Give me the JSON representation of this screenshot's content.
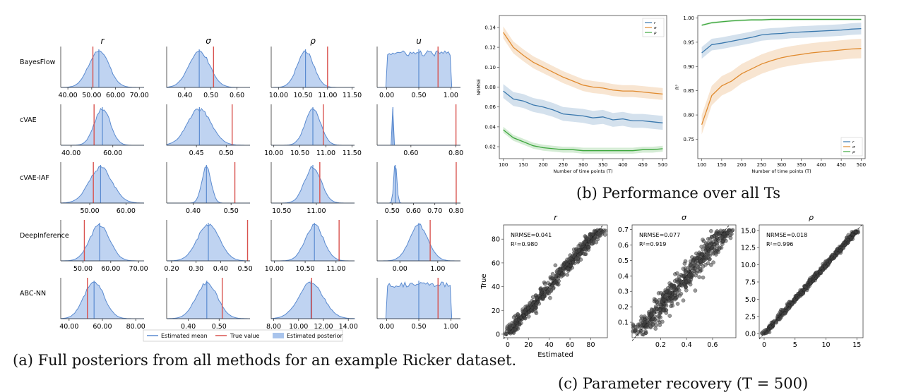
{
  "captions": {
    "a": "(a) Full posteriors from all methods for an example Ricker dataset.",
    "b": "(b) Performance over all Ts",
    "c": "(c) Parameter recovery (T = 500)"
  },
  "colors": {
    "estimated_mean": "#5b8bd0",
    "true_value": "#d9534f",
    "posterior_fill": "#a9c4ec",
    "r_line": "#3a78ad",
    "sigma_line": "#e08a2e",
    "rho_line": "#3fa83f",
    "scatter": "#444444"
  },
  "chart_data": [
    {
      "type": "area",
      "title": "(a) Full posteriors from all methods for an example Ricker dataset.",
      "columns": [
        "r",
        "σ",
        "ρ",
        "u"
      ],
      "rows": [
        "BayesFlow",
        "cVAE",
        "cVAE-IAF",
        "DeepInference",
        "ABC-NN"
      ],
      "legend": [
        "Estimated mean",
        "True value",
        "Estimated posterior"
      ],
      "legend_position": "bottom",
      "panels": [
        [
          {
            "ticks": [
              "40.00",
              "50.00",
              "60.00",
              "70.00"
            ],
            "xlim": [
              37,
              72
            ],
            "mean": 53,
            "sd": 4.2,
            "mean_line": 53,
            "true": 50.5
          },
          {
            "ticks": [
              "0.40",
              "0.50",
              "0.60"
            ],
            "xlim": [
              0.33,
              0.65
            ],
            "mean": 0.455,
            "sd": 0.04,
            "mean_line": 0.455,
            "true": 0.51
          },
          {
            "ticks": [
              "10.00",
              "10.50",
              "11.00",
              "11.50"
            ],
            "xlim": [
              9.85,
              11.55
            ],
            "mean": 10.55,
            "sd": 0.17,
            "mean_line": 10.55,
            "true": 11.0
          },
          {
            "ticks": [
              "0.00",
              "0.50",
              "1.00"
            ],
            "xlim": [
              -0.15,
              1.15
            ],
            "uniform": [
              0.0,
              1.0
            ],
            "mean_line": 0.5,
            "true": 0.8
          }
        ],
        [
          {
            "ticks": [
              "40.00",
              "60.00"
            ],
            "xlim": [
              35,
              75
            ],
            "mean": 55,
            "sd": 3.8,
            "mean_line": 55,
            "true": 51
          },
          {
            "ticks": [
              "0.45",
              "0.50"
            ],
            "xlim": [
              0.4,
              0.54
            ],
            "mean": 0.455,
            "sd": 0.02,
            "mean_line": 0.455,
            "true": 0.51
          },
          {
            "ticks": [
              "10.00",
              "10.50",
              "11.00",
              "11.50"
            ],
            "xlim": [
              9.95,
              11.55
            ],
            "mean": 10.75,
            "sd": 0.15,
            "mean_line": 10.75,
            "true": 10.95
          },
          {
            "ticks": [
              "0.60",
              "0.80"
            ],
            "xlim": [
              0.45,
              0.82
            ],
            "spike": 0.52,
            "mean_line": 0.52,
            "true": 0.8
          }
        ],
        [
          {
            "ticks": [
              "50.00",
              "60.00"
            ],
            "xlim": [
              42,
              65
            ],
            "mean": 53,
            "sd": 3.2,
            "mean_line": 53,
            "true": 51
          },
          {
            "ticks": [
              "0.40",
              "0.50"
            ],
            "xlim": [
              0.33,
              0.55
            ],
            "mean": 0.435,
            "sd": 0.012,
            "mean_line": 0.435,
            "true": 0.51
          },
          {
            "ticks": [
              "10.50",
              "11.00"
            ],
            "xlim": [
              10.35,
              11.55
            ],
            "mean": 10.95,
            "sd": 0.12,
            "mean_line": 10.95,
            "true": 11.05
          },
          {
            "ticks": [
              "0.50",
              "0.60",
              "0.70",
              "0.80"
            ],
            "xlim": [
              0.43,
              0.82
            ],
            "mean": 0.515,
            "sd": 0.007,
            "mean_line": 0.515,
            "true": 0.8
          }
        ],
        [
          {
            "ticks": [
              "50.00",
              "60.00",
              "70.00"
            ],
            "xlim": [
              42,
              72
            ],
            "mean": 56,
            "sd": 3.6,
            "mean_line": 56,
            "true": 50.5
          },
          {
            "ticks": [
              "0.20",
              "0.30",
              "0.40",
              "0.50"
            ],
            "xlim": [
              0.18,
              0.52
            ],
            "mean": 0.35,
            "sd": 0.045,
            "mean_line": 0.35,
            "true": 0.51
          },
          {
            "ticks": [
              "10.00",
              "10.50",
              "11.00"
            ],
            "xlim": [
              9.95,
              11.3
            ],
            "mean": 10.65,
            "sd": 0.15,
            "mean_line": 10.65,
            "true": 11.05
          },
          {
            "ticks": [
              "0.00",
              "1.00"
            ],
            "xlim": [
              -0.6,
              1.6
            ],
            "mean": 0.5,
            "sd": 0.25,
            "mean_line": 0.5,
            "true": 0.8
          }
        ],
        [
          {
            "ticks": [
              "40.00",
              "60.00",
              "80.00"
            ],
            "xlim": [
              35,
              85
            ],
            "mean": 55,
            "sd": 6,
            "mean_line": 55,
            "true": 51
          },
          {
            "ticks": [
              "0.40",
              "0.50"
            ],
            "xlim": [
              0.33,
              0.6
            ],
            "mean": 0.46,
            "sd": 0.035,
            "mean_line": 0.46,
            "true": 0.51
          },
          {
            "ticks": [
              "8.00",
              "10.00",
              "12.00",
              "14.00"
            ],
            "xlim": [
              7.8,
              14.5
            ],
            "mean": 11,
            "sd": 1.0,
            "mean_line": 11,
            "true": 11.05
          },
          {
            "ticks": [
              "0.00",
              "0.50",
              "1.00"
            ],
            "xlim": [
              -0.15,
              1.15
            ],
            "uniform": [
              0.0,
              1.0
            ],
            "mean_line": 0.5,
            "true": 0.8
          }
        ]
      ]
    },
    {
      "type": "line",
      "title": "(b) Performance over all Ts",
      "xlabel": "Number of time points (T)",
      "ylabel": "NRMSE",
      "xlim": [
        90,
        510
      ],
      "ylim": [
        0.008,
        0.152
      ],
      "x": [
        100,
        125,
        150,
        175,
        200,
        225,
        250,
        275,
        300,
        325,
        350,
        375,
        400,
        425,
        450,
        475,
        500
      ],
      "xticks": [
        100,
        150,
        200,
        250,
        300,
        350,
        400,
        450,
        500
      ],
      "yticks": [
        "0.02",
        "0.04",
        "0.06",
        "0.08",
        "0.10",
        "0.12",
        "0.14"
      ],
      "ytick_values": [
        0.02,
        0.04,
        0.06,
        0.08,
        0.1,
        0.12,
        0.14
      ],
      "legend": [
        "r",
        "σ",
        "ρ"
      ],
      "legend_position": "top-right",
      "series": [
        {
          "name": "r",
          "values": [
            0.076,
            0.068,
            0.066,
            0.062,
            0.06,
            0.057,
            0.053,
            0.052,
            0.051,
            0.049,
            0.05,
            0.047,
            0.048,
            0.046,
            0.046,
            0.045,
            0.044
          ],
          "band": 0.007
        },
        {
          "name": "σ",
          "values": [
            0.135,
            0.12,
            0.112,
            0.105,
            0.1,
            0.095,
            0.09,
            0.086,
            0.082,
            0.08,
            0.079,
            0.077,
            0.076,
            0.076,
            0.075,
            0.074,
            0.073
          ],
          "band": 0.006
        },
        {
          "name": "ρ",
          "values": [
            0.037,
            0.029,
            0.025,
            0.021,
            0.019,
            0.018,
            0.017,
            0.017,
            0.016,
            0.016,
            0.016,
            0.016,
            0.016,
            0.016,
            0.017,
            0.017,
            0.018
          ],
          "band": 0.003
        }
      ]
    },
    {
      "type": "line",
      "title": "",
      "xlabel": "Number of time points (T)",
      "ylabel": "R²",
      "xlim": [
        90,
        510
      ],
      "ylim": [
        0.71,
        1.005
      ],
      "x": [
        100,
        125,
        150,
        175,
        200,
        225,
        250,
        275,
        300,
        325,
        350,
        375,
        400,
        425,
        450,
        475,
        500
      ],
      "xticks": [
        100,
        150,
        200,
        250,
        300,
        350,
        400,
        450,
        500
      ],
      "yticks": [
        "0.75",
        "0.80",
        "0.85",
        "0.90",
        "0.95",
        "1.00"
      ],
      "ytick_values": [
        0.75,
        0.8,
        0.85,
        0.9,
        0.95,
        1.0
      ],
      "legend": [
        "r",
        "σ",
        "ρ"
      ],
      "legend_position": "bottom-right",
      "series": [
        {
          "name": "r",
          "values": [
            0.928,
            0.945,
            0.948,
            0.952,
            0.956,
            0.96,
            0.965,
            0.967,
            0.968,
            0.97,
            0.971,
            0.972,
            0.973,
            0.974,
            0.975,
            0.977,
            0.978
          ],
          "band": 0.012
        },
        {
          "name": "σ",
          "values": [
            0.78,
            0.84,
            0.86,
            0.87,
            0.885,
            0.895,
            0.905,
            0.912,
            0.918,
            0.922,
            0.925,
            0.928,
            0.93,
            0.932,
            0.934,
            0.936,
            0.937
          ],
          "band": 0.02
        },
        {
          "name": "ρ",
          "values": [
            0.985,
            0.99,
            0.992,
            0.994,
            0.995,
            0.996,
            0.996,
            0.997,
            0.997,
            0.997,
            0.997,
            0.997,
            0.997,
            0.997,
            0.997,
            0.997,
            0.997
          ],
          "band": 0.002
        }
      ]
    },
    {
      "type": "scatter",
      "title": "r",
      "xlabel": "Estimated",
      "ylabel": "True",
      "xlim": [
        -4,
        96
      ],
      "ylim": [
        -3,
        92
      ],
      "xticks": [
        "0",
        "20",
        "40",
        "60",
        "80"
      ],
      "xtick_values": [
        0,
        20,
        40,
        60,
        80
      ],
      "yticks": [
        "0",
        "20",
        "40",
        "60",
        "80"
      ],
      "ytick_values": [
        0,
        20,
        40,
        60,
        80
      ],
      "annotations": [
        "NRMSE=0.041",
        "R²=0.980"
      ],
      "range": [
        0,
        88
      ],
      "noise": 3.5
    },
    {
      "type": "scatter",
      "title": "σ",
      "xlabel": "",
      "ylabel": "",
      "xlim": [
        -0.02,
        0.78
      ],
      "ylim": [
        0.0,
        0.73
      ],
      "xticks": [
        "0.2",
        "0.4",
        "0.6"
      ],
      "xtick_values": [
        0.2,
        0.4,
        0.6
      ],
      "yticks": [
        "0.1",
        "0.2",
        "0.3",
        "0.4",
        "0.5",
        "0.6",
        "0.7"
      ],
      "ytick_values": [
        0.1,
        0.2,
        0.3,
        0.4,
        0.5,
        0.6,
        0.7
      ],
      "annotations": [
        "NRMSE=0.077",
        "R²=0.919"
      ],
      "range": [
        0.02,
        0.7
      ],
      "noise": 0.045
    },
    {
      "type": "scatter",
      "title": "ρ",
      "xlabel": "",
      "ylabel": "",
      "xlim": [
        -0.8,
        16
      ],
      "ylim": [
        -0.6,
        15.8
      ],
      "xticks": [
        "0",
        "5",
        "10",
        "15"
      ],
      "xtick_values": [
        0,
        5,
        10,
        15
      ],
      "yticks": [
        "0.0",
        "2.5",
        "5.0",
        "7.5",
        "10.0",
        "12.5",
        "15.0"
      ],
      "ytick_values": [
        0,
        2.5,
        5,
        7.5,
        10,
        12.5,
        15
      ],
      "annotations": [
        "NRMSE=0.018",
        "R²=0.996"
      ],
      "range": [
        0,
        15
      ],
      "noise": 0.22
    }
  ]
}
